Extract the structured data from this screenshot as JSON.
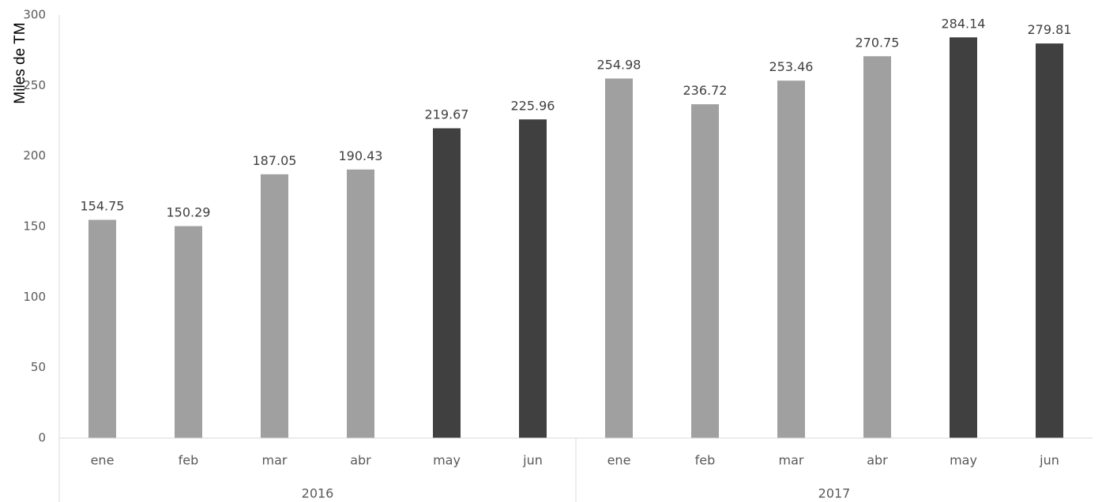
{
  "chart_data": {
    "type": "bar",
    "title": "",
    "xlabel": "",
    "ylabel": "Miles de TM",
    "ylim": [
      0,
      300
    ],
    "yticks": [
      0,
      50,
      100,
      150,
      200,
      250,
      300
    ],
    "grid": false,
    "groups": [
      {
        "label": "2016",
        "bars": [
          {
            "category": "ene",
            "value": 154.75,
            "value_label": "154.75",
            "color": "#a0a0a0"
          },
          {
            "category": "feb",
            "value": 150.29,
            "value_label": "150.29",
            "color": "#a0a0a0"
          },
          {
            "category": "mar",
            "value": 187.05,
            "value_label": "187.05",
            "color": "#a0a0a0"
          },
          {
            "category": "abr",
            "value": 190.43,
            "value_label": "190.43",
            "color": "#a0a0a0"
          },
          {
            "category": "may",
            "value": 219.67,
            "value_label": "219.67",
            "color": "#404040"
          },
          {
            "category": "jun",
            "value": 225.96,
            "value_label": "225.96",
            "color": "#404040"
          }
        ]
      },
      {
        "label": "2017",
        "bars": [
          {
            "category": "ene",
            "value": 254.98,
            "value_label": "254.98",
            "color": "#a0a0a0"
          },
          {
            "category": "feb",
            "value": 236.72,
            "value_label": "236.72",
            "color": "#a0a0a0"
          },
          {
            "category": "mar",
            "value": 253.46,
            "value_label": "253.46",
            "color": "#a0a0a0"
          },
          {
            "category": "abr",
            "value": 270.75,
            "value_label": "270.75",
            "color": "#a0a0a0"
          },
          {
            "category": "may",
            "value": 284.14,
            "value_label": "284.14",
            "color": "#404040"
          },
          {
            "category": "jun",
            "value": 279.81,
            "value_label": "279.81",
            "color": "#404040"
          }
        ]
      }
    ]
  }
}
